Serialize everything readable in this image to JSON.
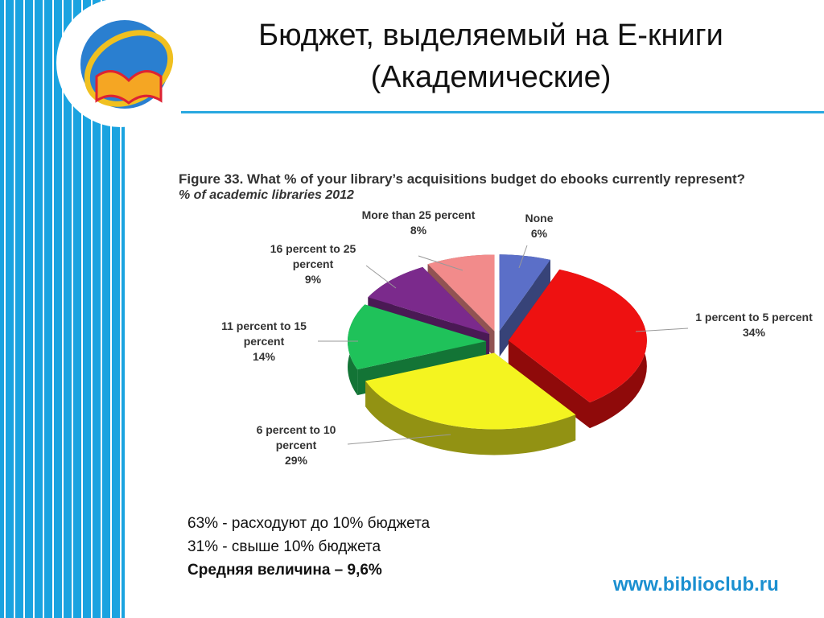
{
  "slide": {
    "title": "Бюджет, выделяемый на Е-книги",
    "subtitle": "(Академические)"
  },
  "chart_data": {
    "type": "pie",
    "title": "Figure 33. What % of your library’s acquisitions budget do ebooks currently represent?",
    "subtitle": "% of academic libraries 2012",
    "categories": [
      "None",
      "1 percent to 5 percent",
      "6 percent to 10 percent",
      "11 percent to 15 percent",
      "16 percent to 25 percent",
      "More than 25 percent"
    ],
    "values": [
      6,
      34,
      29,
      14,
      9,
      8
    ],
    "value_labels": [
      "6%",
      "34%",
      "29%",
      "14%",
      "9%",
      "8%"
    ],
    "colors": [
      "#5b6fc8",
      "#ee1111",
      "#f4f420",
      "#1fc25a",
      "#7b2a8c",
      "#f28b8b"
    ]
  },
  "notes": [
    "63% - расходуют до 10% бюджета",
    "31% - свыше 10% бюджета",
    "Средняя величина – 9,6%"
  ],
  "footer": "www.biblioclub.ru"
}
